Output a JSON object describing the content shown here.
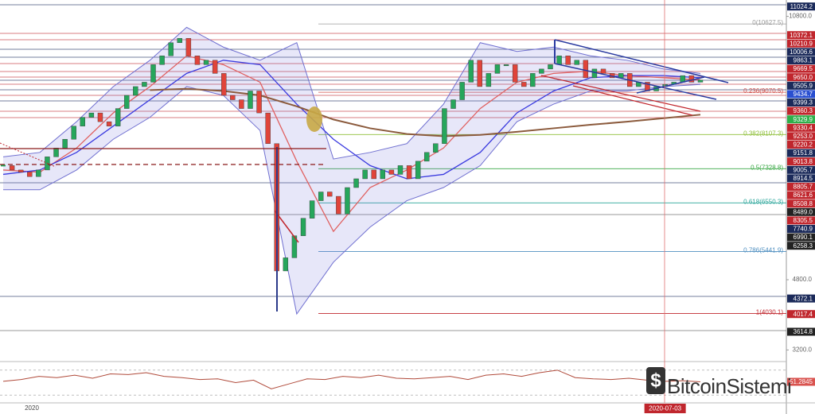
{
  "chart_data": {
    "type": "candlestick",
    "closes": [
      7400,
      7300,
      7250,
      7150,
      7300,
      7600,
      7800,
      8000,
      8300,
      8500,
      8600,
      8400,
      8300,
      8700,
      9000,
      9200,
      9300,
      9700,
      9900,
      10200,
      10300,
      9900,
      9700,
      9800,
      9500,
      9000,
      8900,
      8700,
      9100,
      8600,
      7900,
      5000,
      5300,
      5800,
      6200,
      6600,
      6800,
      6700,
      6300,
      6900,
      7100,
      7300,
      7100,
      7300,
      7200,
      7400,
      7100,
      7500,
      7700,
      7900,
      8700,
      8900,
      9300,
      9800,
      9200,
      9500,
      9700,
      9700,
      9300,
      9200,
      9500,
      9600,
      9700,
      9900,
      9700,
      9800,
      9400,
      9600,
      9500,
      9400,
      9500,
      9200,
      9300,
      9100,
      9200,
      9250,
      9300,
      9450,
      9300,
      9350
    ],
    "up_color": "#26a65b",
    "down_color": "#e0443a",
    "bands": {
      "upper": [
        7600,
        7700,
        8400,
        9200,
        9800,
        10550,
        10100,
        9800,
        10200,
        7550,
        7700,
        7900,
        8800,
        10200,
        10000,
        10100,
        9900,
        9800,
        9600,
        9500
      ],
      "lower": [
        6850,
        6850,
        7300,
        8000,
        8500,
        9200,
        9000,
        8200,
        4020,
        5200,
        6000,
        6600,
        6900,
        7400,
        8400,
        8800,
        9100,
        9100,
        9200,
        9250
      ],
      "color": "#6f6fd0"
    },
    "averages": [
      {
        "color": "#e06060",
        "values": [
          7300,
          7250,
          7800,
          8600,
          9200,
          9900,
          9700,
          9300,
          7500,
          5900,
          6900,
          7300,
          7800,
          8700,
          9300,
          9500,
          9550,
          9450,
          9400,
          9350
        ]
      },
      {
        "color": "#3a3adf",
        "values": [
          7200,
          7300,
          7700,
          8300,
          8900,
          9500,
          9800,
          9700,
          8800,
          8000,
          7400,
          7100,
          7200,
          7700,
          8600,
          9100,
          9400,
          9450,
          9450,
          9400
        ]
      },
      {
        "color": "#8b5a3c",
        "values": [
          null,
          null,
          null,
          null,
          9120,
          9150,
          9100,
          9000,
          8750,
          8450,
          8250,
          8120,
          8070,
          8100,
          8170,
          8250,
          8330,
          8400,
          8480,
          8560
        ]
      }
    ],
    "ylim": [
      2990,
      11100
    ],
    "yticks": [
      {
        "value": 10800,
        "label": "10800.0"
      },
      {
        "value": 4800,
        "label": "4800.0"
      },
      {
        "value": 3200,
        "label": "3200.0"
      }
    ],
    "price_tags": [
      {
        "value": 11024.2,
        "color": "#1b2a5a"
      },
      {
        "value": 10372.1,
        "color": "#c0262d"
      },
      {
        "value": 10210.9,
        "color": "#c0262d"
      },
      {
        "value": 10006.6,
        "color": "#1b2a5a"
      },
      {
        "value": 9863.1,
        "color": "#1b2a5a"
      },
      {
        "value": 9669.5,
        "color": "#c0262d"
      },
      {
        "value": 9650,
        "label": "9650.0",
        "color": "#c0262d"
      },
      {
        "value": 9505.9,
        "color": "#1b2a5a"
      },
      {
        "value": 9434.7,
        "color": "#2a4fd0"
      },
      {
        "value": 9399.3,
        "color": "#1b2a5a"
      },
      {
        "value": 9360.3,
        "color": "#c0262d"
      },
      {
        "value": 9329.9,
        "color": "#2db04a"
      },
      {
        "value": 9330.4,
        "color": "#c0262d"
      },
      {
        "value": 9253,
        "label": "9253.0",
        "color": "#c0262d"
      },
      {
        "value": 9220.2,
        "color": "#c0262d"
      },
      {
        "value": 9151.8,
        "color": "#1b2a5a"
      },
      {
        "value": 9013.8,
        "color": "#c0262d"
      },
      {
        "value": 9005.7,
        "color": "#1b2a5a"
      },
      {
        "value": 8914.5,
        "color": "#1b2a5a"
      },
      {
        "value": 8805.7,
        "color": "#c0262d"
      },
      {
        "value": 8621.6,
        "color": "#c0262d"
      },
      {
        "value": 8508.8,
        "color": "#c0262d"
      },
      {
        "value": 8489,
        "label": "8489.0",
        "color": "#222"
      },
      {
        "value": 8305.5,
        "color": "#c0262d"
      },
      {
        "value": 7740.9,
        "color": "#1b2a5a"
      },
      {
        "value": 6990.1,
        "color": "#222"
      },
      {
        "value": 6258.3,
        "color": "#222"
      },
      {
        "value": 4372.1,
        "color": "#1b2a5a"
      },
      {
        "value": 4017.4,
        "color": "#c0262d"
      },
      {
        "value": 3614.8,
        "color": "#222"
      }
    ],
    "fib_levels": [
      {
        "value": 10627.5,
        "label": "0(10627.5)",
        "color": "#999"
      },
      {
        "value": 9070.5,
        "label": "0.236(9070.5)",
        "color": "#d0504a"
      },
      {
        "value": 8107.3,
        "label": "0.382(8107.3)",
        "color": "#8fbf3a"
      },
      {
        "value": 7328.8,
        "label": "0.5(7328.8)",
        "color": "#3aa845"
      },
      {
        "value": 6550.3,
        "label": "0.618(6550.3)",
        "color": "#2aa59a"
      },
      {
        "value": 5441.9,
        "label": "0.786(5441.9)",
        "color": "#4f8fc0"
      },
      {
        "value": 4030.1,
        "label": "1(4030.1)",
        "color": "#c0262d"
      }
    ],
    "rsi": {
      "values": [
        52,
        55,
        60,
        58,
        62,
        57,
        64,
        63,
        66,
        60,
        58,
        55,
        56,
        50,
        54,
        40,
        48,
        56,
        55,
        60,
        58,
        62,
        57,
        56,
        58,
        60,
        55,
        62,
        64,
        60,
        66,
        70,
        58,
        56,
        55,
        57,
        54,
        52,
        53,
        51.2845
      ],
      "ylim": [
        20,
        80
      ],
      "levels": [
        70,
        30
      ],
      "color": "#b04a3a",
      "tag": 51.2845
    },
    "time_labels": [
      "2020",
      "2020-07-03"
    ],
    "watermark": "BitcoinSistemi"
  }
}
